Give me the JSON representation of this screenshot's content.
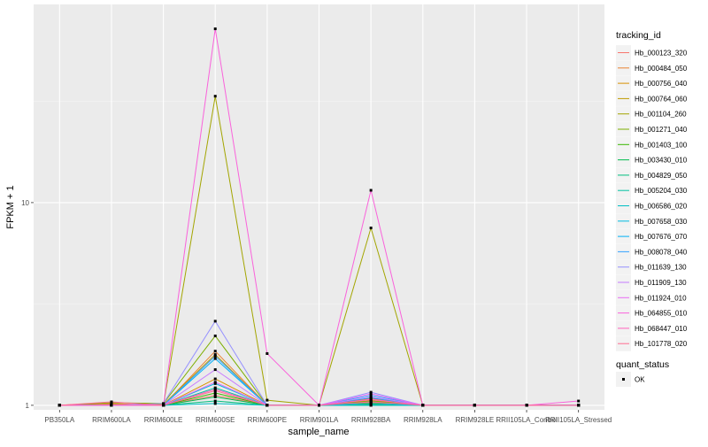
{
  "chart_data": {
    "type": "line",
    "xlabel": "sample_name",
    "ylabel": "FPKM + 1",
    "y_scale": "log10",
    "ylim": [
      0.95,
      95
    ],
    "y_ticks": [
      {
        "value": 1,
        "label": "1"
      },
      {
        "value": 10,
        "label": "10"
      }
    ],
    "grid": true,
    "legend_placement": "right",
    "categories": [
      "PB350LA",
      "RRIM600LA",
      "RRIM600LE",
      "RRIM600SE",
      "RRIM600PE",
      "RRIM901LA",
      "RRIM928BA",
      "RRIM928LA",
      "RRIM928LE",
      "RRII105LA_Control",
      "RRII105LA_Stressed"
    ],
    "series": [
      {
        "name": "Hb_000123_320",
        "color": "#F8766D",
        "values": [
          1,
          1.02,
          1.0,
          1.12,
          1.0,
          1.0,
          1.06,
          1.0,
          1.0,
          1.0,
          1.0
        ]
      },
      {
        "name": "Hb_000484_050",
        "color": "#EA8331",
        "values": [
          1,
          1.0,
          1.0,
          1.85,
          1.0,
          1.0,
          1.08,
          1.0,
          1.0,
          1.0,
          1.0
        ]
      },
      {
        "name": "Hb_000756_040",
        "color": "#D89000",
        "values": [
          1,
          1.01,
          1.0,
          1.35,
          1.0,
          1.0,
          1.05,
          1.0,
          1.0,
          1.0,
          1.0
        ]
      },
      {
        "name": "Hb_000764_060",
        "color": "#C09B00",
        "values": [
          1,
          1.0,
          1.01,
          1.78,
          1.0,
          1.0,
          1.03,
          1.0,
          1.0,
          1.0,
          1.0
        ]
      },
      {
        "name": "Hb_001104_260",
        "color": "#A3A500",
        "values": [
          1,
          1.0,
          1.0,
          33.5,
          1.06,
          1.0,
          7.5,
          1.0,
          1.0,
          1.0,
          1.0
        ]
      },
      {
        "name": "Hb_001271_040",
        "color": "#7CAE00",
        "values": [
          1,
          1.03,
          1.02,
          2.2,
          1.0,
          1.0,
          1.05,
          1.0,
          1.0,
          1.0,
          1.0
        ]
      },
      {
        "name": "Hb_001403_100",
        "color": "#39B600",
        "values": [
          1,
          1.0,
          1.0,
          1.15,
          1.0,
          1.0,
          1.02,
          1.0,
          1.0,
          1.0,
          1.0
        ]
      },
      {
        "name": "Hb_003430_010",
        "color": "#00BB4E",
        "values": [
          1,
          1.0,
          1.0,
          1.1,
          1.0,
          1.0,
          1.01,
          1.0,
          1.0,
          1.0,
          1.0
        ]
      },
      {
        "name": "Hb_004829_050",
        "color": "#00BF7D",
        "values": [
          1,
          1.0,
          1.0,
          1.05,
          1.0,
          1.0,
          1.0,
          1.0,
          1.0,
          1.0,
          1.0
        ]
      },
      {
        "name": "Hb_005204_030",
        "color": "#00C1A3",
        "values": [
          1,
          1.0,
          1.0,
          1.22,
          1.0,
          1.0,
          1.04,
          1.0,
          1.0,
          1.0,
          1.0
        ]
      },
      {
        "name": "Hb_006586_020",
        "color": "#00BFC4",
        "values": [
          1,
          1.0,
          1.0,
          1.02,
          1.0,
          1.0,
          1.0,
          1.0,
          1.0,
          1.0,
          1.0
        ]
      },
      {
        "name": "Hb_007658_030",
        "color": "#00BAE0",
        "values": [
          1,
          1.0,
          1.0,
          1.28,
          1.0,
          1.0,
          1.02,
          1.0,
          1.0,
          1.0,
          1.0
        ]
      },
      {
        "name": "Hb_007676_070",
        "color": "#00B0F6",
        "values": [
          1,
          1.0,
          1.0,
          1.7,
          1.0,
          1.0,
          1.09,
          1.0,
          1.0,
          1.0,
          1.0
        ]
      },
      {
        "name": "Hb_008078_040",
        "color": "#35A2FF",
        "values": [
          1,
          1.0,
          1.0,
          1.75,
          1.0,
          1.0,
          1.12,
          1.0,
          1.0,
          1.0,
          1.0
        ]
      },
      {
        "name": "Hb_011639_130",
        "color": "#9590FF",
        "values": [
          1,
          1.0,
          1.02,
          2.6,
          1.0,
          1.0,
          1.16,
          1.0,
          1.0,
          1.0,
          1.0
        ]
      },
      {
        "name": "Hb_011909_130",
        "color": "#C77CFF",
        "values": [
          1,
          1.0,
          1.0,
          1.5,
          1.0,
          1.0,
          1.1,
          1.0,
          1.0,
          1.0,
          1.0
        ]
      },
      {
        "name": "Hb_011924_010",
        "color": "#E76BF3",
        "values": [
          1,
          1.0,
          1.0,
          1.3,
          1.0,
          1.0,
          1.14,
          1.0,
          1.0,
          1.0,
          1.0
        ]
      },
      {
        "name": "Hb_064855_010",
        "color": "#FA62DB",
        "values": [
          1,
          1.0,
          1.0,
          72,
          1.8,
          1.0,
          11.5,
          1.0,
          1.0,
          1.0,
          1.05
        ]
      },
      {
        "name": "Hb_068447_010",
        "color": "#FF62BC",
        "values": [
          1,
          1.0,
          1.0,
          1.2,
          1.0,
          1.0,
          1.07,
          1.0,
          1.0,
          1.0,
          1.0
        ]
      },
      {
        "name": "Hb_101778_020",
        "color": "#FF6C91",
        "values": [
          1,
          1.04,
          1.0,
          1.18,
          1.0,
          1.0,
          1.04,
          1.0,
          1.0,
          1.0,
          1.0
        ]
      }
    ],
    "legend": {
      "title": "tracking_id"
    },
    "point_legend": {
      "title": "quant_status",
      "items": [
        "OK"
      ]
    },
    "colors": {
      "panel_background": "#EBEBEB",
      "grid_major": "#FFFFFF",
      "grid_minor": "#F5F5F5",
      "point": "#000000"
    }
  }
}
